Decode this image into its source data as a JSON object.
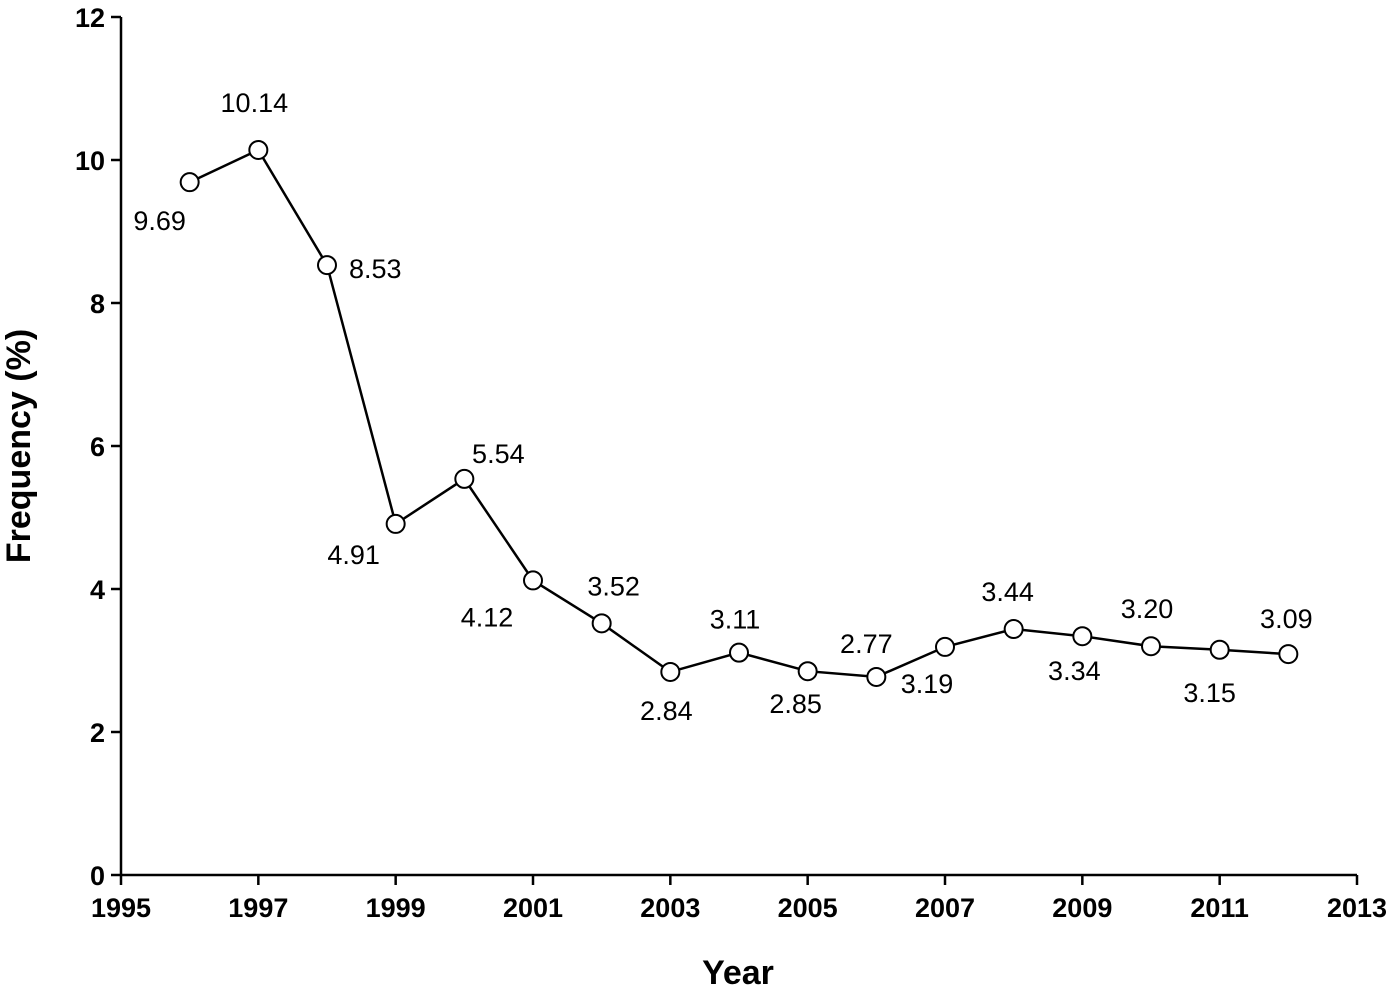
{
  "chart_data": {
    "type": "line",
    "title": "",
    "xlabel": "Year",
    "ylabel": "Frequency (%)",
    "xlim": [
      1995,
      2013
    ],
    "ylim": [
      0,
      12
    ],
    "x_ticks": [
      "1995",
      "1997",
      "1999",
      "2001",
      "2003",
      "2005",
      "2007",
      "2009",
      "2011",
      "2013"
    ],
    "y_ticks": [
      "0",
      "2",
      "4",
      "6",
      "8",
      "10",
      "12"
    ],
    "grid": false,
    "legend": "none",
    "series": [
      {
        "x": [
          1996,
          1997,
          1998,
          1999,
          2000,
          2001,
          2002,
          2003,
          2004,
          2005,
          2006,
          2007,
          2008,
          2009,
          2010,
          2011,
          2012
        ],
        "values": [
          9.69,
          10.14,
          8.53,
          4.91,
          5.54,
          4.12,
          3.52,
          2.84,
          3.11,
          2.85,
          2.77,
          3.19,
          3.44,
          3.34,
          3.2,
          3.15,
          3.09
        ],
        "labels": [
          "9.69",
          "10.14",
          "8.53",
          "4.91",
          "5.54",
          "4.12",
          "3.52",
          "2.84",
          "3.11",
          "2.85",
          "2.77",
          "3.19",
          "3.44",
          "3.34",
          "3.20",
          "3.15",
          "3.09"
        ],
        "line_color": "#000000",
        "marker": "open-circle"
      }
    ]
  }
}
